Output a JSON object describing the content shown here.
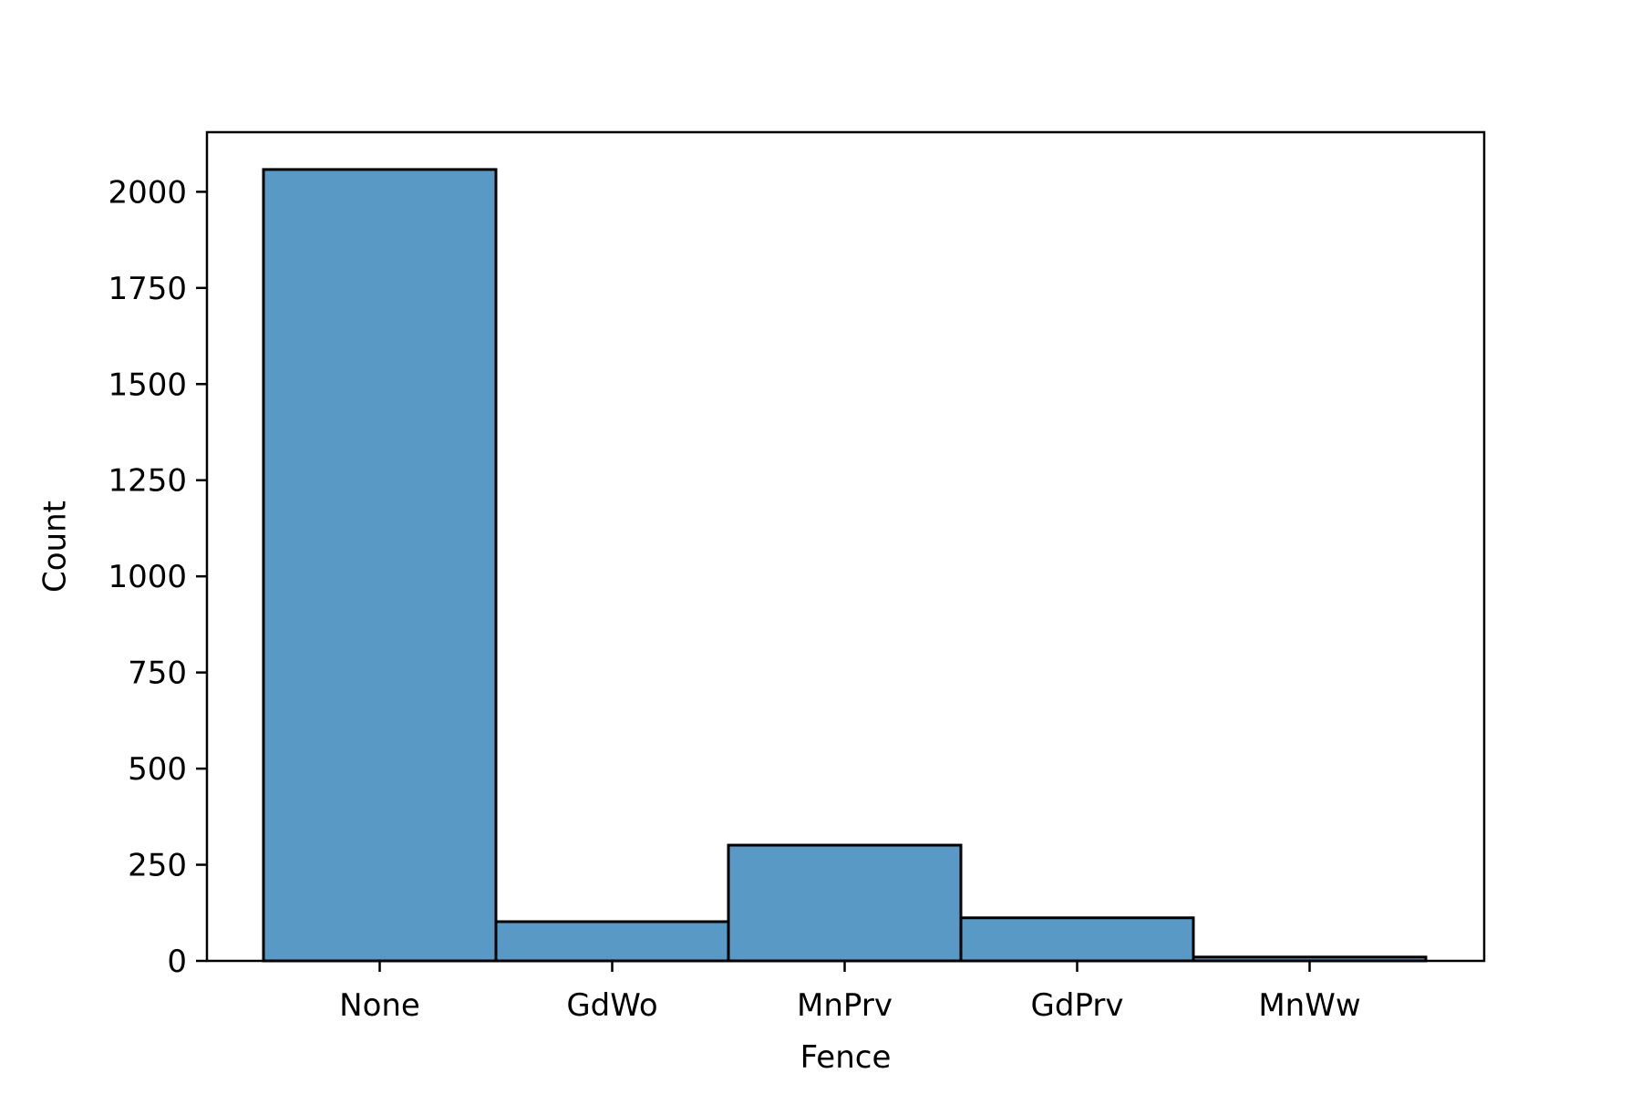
{
  "chart_data": {
    "type": "bar",
    "title": "",
    "xlabel": "Fence",
    "ylabel": "Count",
    "categories": [
      "None",
      "GdWo",
      "MnPrv",
      "GdPrv",
      "MnWw"
    ],
    "values": [
      2058,
      102,
      301,
      112,
      10
    ],
    "ylim": [
      0,
      2155
    ],
    "yticks": [
      0,
      250,
      500,
      750,
      1000,
      1250,
      1500,
      1750,
      2000
    ],
    "ytick_labels": [
      "0",
      "250",
      "500",
      "750",
      "1000",
      "1250",
      "1500",
      "1750",
      "2000"
    ],
    "grid": false,
    "bar_color": "#5899c6",
    "edge_color": "#000000"
  }
}
